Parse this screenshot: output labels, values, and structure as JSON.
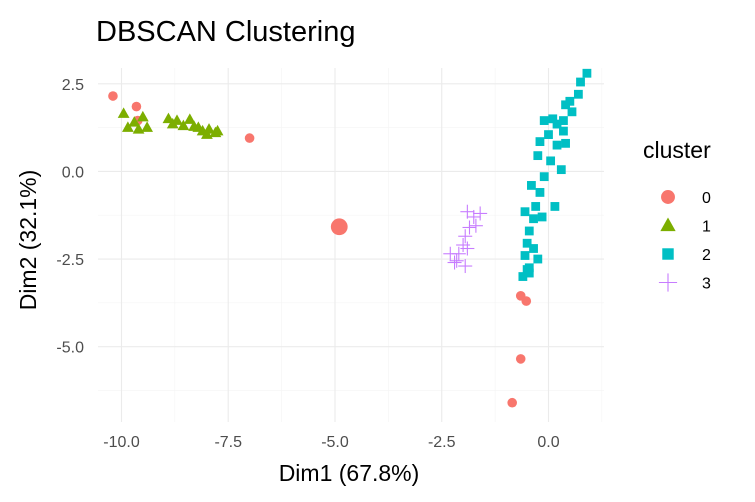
{
  "chart_data": {
    "type": "scatter",
    "title": "DBSCAN Clustering",
    "xlabel": "Dim1 (67.8%)",
    "ylabel": "Dim2 (32.1%)",
    "xlim": [
      -10.55,
      1.3
    ],
    "ylim": [
      -7.15,
      2.95
    ],
    "x_ticks": [
      -10.0,
      -7.5,
      -5.0,
      -2.5,
      0.0
    ],
    "x_tick_labels": [
      "-10.0",
      "-7.5",
      "-5.0",
      "-2.5",
      "0.0"
    ],
    "y_ticks": [
      2.5,
      0.0,
      -2.5,
      -5.0
    ],
    "y_tick_labels": [
      "2.5",
      "0.0",
      "-2.5",
      "-5.0"
    ],
    "grid": true,
    "legend": {
      "title": "cluster",
      "position": "right",
      "entries": [
        {
          "label": "0",
          "shape": "circle",
          "color": "#F8766D"
        },
        {
          "label": "1",
          "shape": "triangle",
          "color": "#7CAE00"
        },
        {
          "label": "2",
          "shape": "square",
          "color": "#00BFC4"
        },
        {
          "label": "3",
          "shape": "cross",
          "color": "#C77CFF"
        }
      ]
    },
    "series": [
      {
        "name": "0",
        "shape": "circle",
        "color": "#F8766D",
        "points": [
          [
            -10.2,
            2.15
          ],
          [
            -9.65,
            1.85
          ],
          [
            -9.62,
            1.45
          ],
          [
            -7.0,
            0.95
          ],
          [
            -0.65,
            -3.55
          ],
          [
            -0.52,
            -3.7
          ],
          [
            -0.65,
            -5.35
          ],
          [
            -0.85,
            -6.6
          ]
        ],
        "large_points": [
          [
            -4.9,
            -1.58
          ]
        ]
      },
      {
        "name": "1",
        "shape": "triangle",
        "color": "#7CAE00",
        "points": [
          [
            -9.95,
            1.65
          ],
          [
            -9.85,
            1.25
          ],
          [
            -9.7,
            1.4
          ],
          [
            -9.6,
            1.2
          ],
          [
            -9.5,
            1.55
          ],
          [
            -9.4,
            1.25
          ],
          [
            -8.9,
            1.5
          ],
          [
            -8.8,
            1.35
          ],
          [
            -8.7,
            1.45
          ],
          [
            -8.55,
            1.3
          ],
          [
            -8.4,
            1.48
          ],
          [
            -8.3,
            1.28
          ],
          [
            -8.2,
            1.25
          ],
          [
            -8.1,
            1.15
          ],
          [
            -8.0,
            1.05
          ],
          [
            -7.95,
            1.2
          ],
          [
            -7.8,
            1.1
          ],
          [
            -7.75,
            1.15
          ]
        ]
      },
      {
        "name": "2",
        "shape": "square",
        "color": "#00BFC4",
        "points": [
          [
            0.9,
            2.8
          ],
          [
            0.75,
            2.55
          ],
          [
            0.7,
            2.2
          ],
          [
            0.5,
            2.0
          ],
          [
            0.55,
            1.7
          ],
          [
            0.4,
            1.9
          ],
          [
            0.35,
            1.45
          ],
          [
            0.2,
            1.35
          ],
          [
            0.1,
            1.5
          ],
          [
            0.0,
            1.05
          ],
          [
            -0.1,
            1.45
          ],
          [
            0.2,
            0.75
          ],
          [
            0.05,
            0.3
          ],
          [
            -0.1,
            -0.15
          ],
          [
            -0.2,
            -0.6
          ],
          [
            -0.3,
            -1.0
          ],
          [
            -0.35,
            -1.35
          ],
          [
            -0.45,
            -1.7
          ],
          [
            -0.5,
            -2.05
          ],
          [
            -0.55,
            -2.4
          ],
          [
            -0.5,
            -2.8
          ],
          [
            -0.6,
            -3.0
          ],
          [
            -0.45,
            -2.9
          ],
          [
            -0.25,
            -2.5
          ],
          [
            -0.35,
            -2.2
          ],
          [
            -0.55,
            -1.15
          ],
          [
            -0.15,
            -1.3
          ],
          [
            0.3,
            0.05
          ],
          [
            0.4,
            0.8
          ],
          [
            0.35,
            1.15
          ],
          [
            -0.25,
            0.45
          ],
          [
            -0.4,
            -0.4
          ],
          [
            -0.45,
            -2.75
          ],
          [
            0.15,
            -1.0
          ],
          [
            -0.2,
            0.85
          ]
        ]
      },
      {
        "name": "3",
        "shape": "cross",
        "color": "#C77CFF",
        "points": [
          [
            -1.9,
            -1.15
          ],
          [
            -1.75,
            -1.3
          ],
          [
            -1.6,
            -1.2
          ],
          [
            -1.85,
            -1.6
          ],
          [
            -1.7,
            -1.55
          ],
          [
            -1.95,
            -1.85
          ],
          [
            -2.0,
            -2.1
          ],
          [
            -1.9,
            -2.2
          ],
          [
            -2.1,
            -2.35
          ],
          [
            -2.3,
            -2.35
          ],
          [
            -2.15,
            -2.55
          ],
          [
            -1.95,
            -2.7
          ],
          [
            -2.2,
            -2.6
          ]
        ]
      }
    ]
  }
}
